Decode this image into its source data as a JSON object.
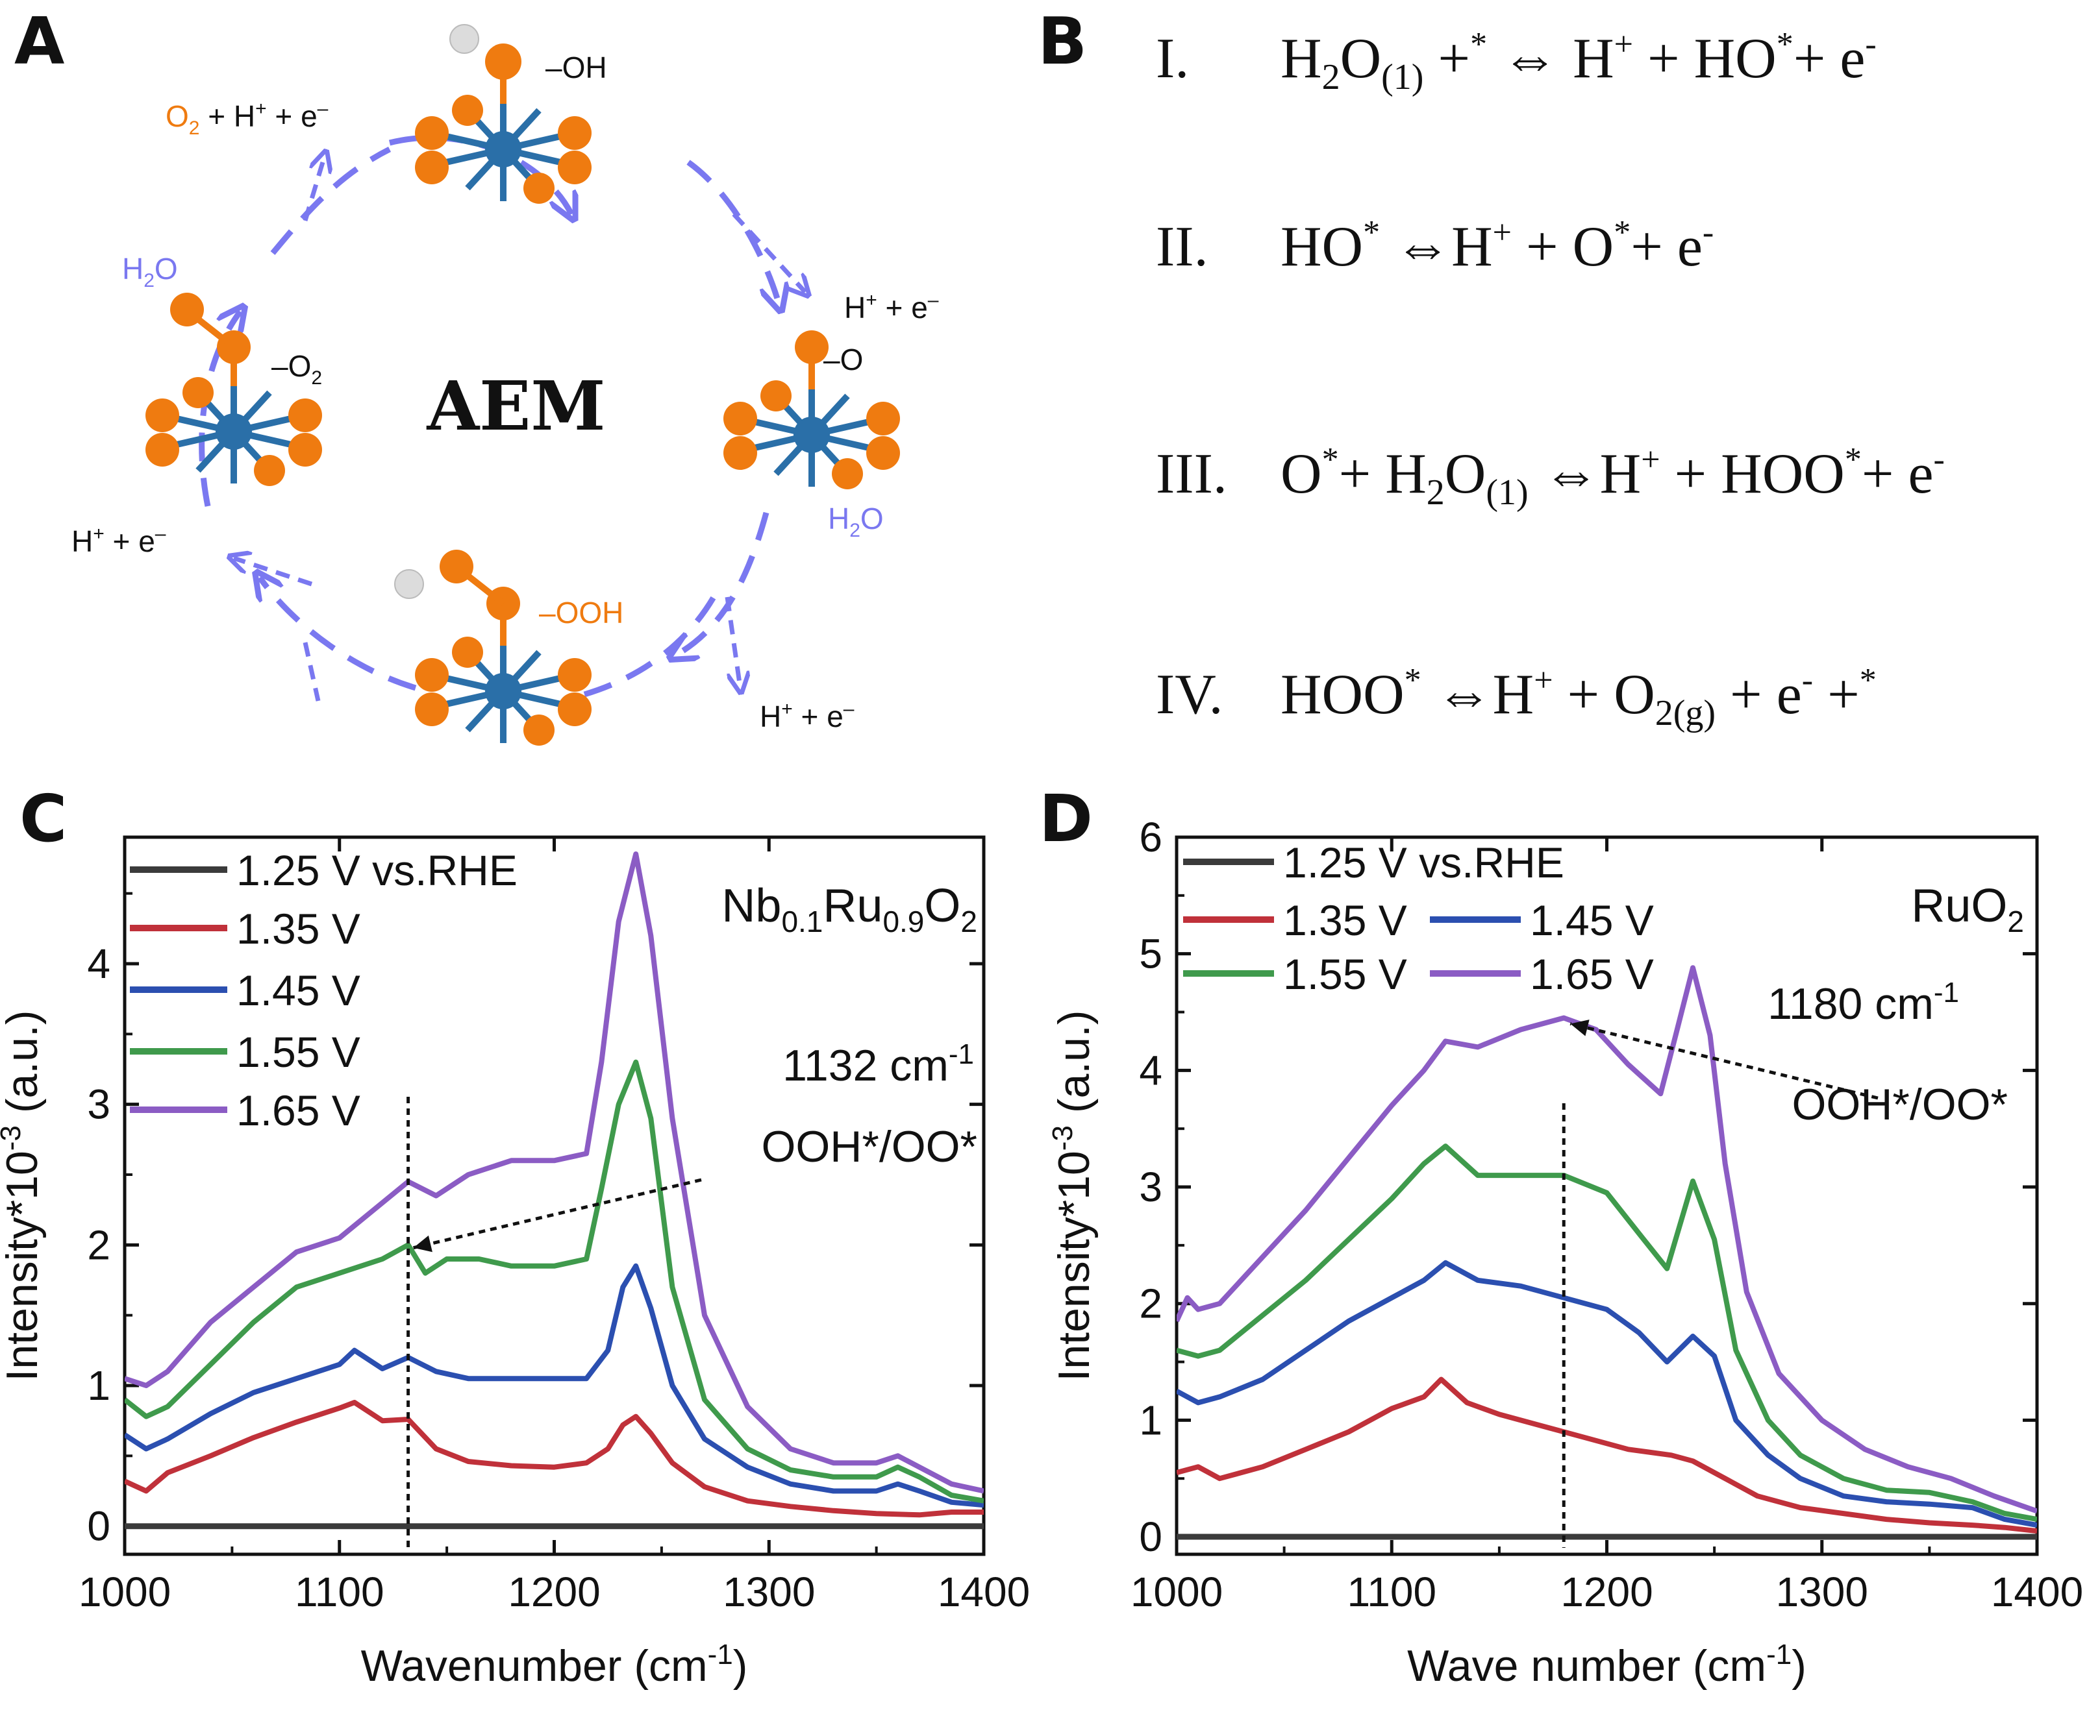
{
  "panel_labels": {
    "a": "A",
    "b": "B",
    "c": "C",
    "d": "D"
  },
  "panel_a": {
    "center_title": "AEM",
    "species": {
      "oh": "–OH",
      "o": "–O",
      "ooh": "–OOH",
      "o2": "–O",
      "o2_sub": "2"
    },
    "h2o_top_left": "H",
    "h2o_right": "H",
    "h2o_sub": "2",
    "h2o_tail": "O",
    "proton_electron": "H",
    "pe_sup": "+",
    "pe_tail": " + e",
    "pe_sup2": "–",
    "o2_release_o": "O",
    "o2_release_sub": "2",
    "o2_release_tail": " + H",
    "colors": {
      "oxygen": "#ef7b10",
      "metal": "#2a6fa8",
      "hydrogen": "#dcdcdc",
      "arrow": "#7a78f0",
      "orange_text": "#ef7b10",
      "purple_text": "#7a78f0"
    }
  },
  "panel_b": {
    "equations": [
      {
        "num": "I."
      },
      {
        "num": "II."
      },
      {
        "num": "III."
      },
      {
        "num": "IV."
      }
    ],
    "sym": {
      "h2o_h": "H",
      "h2o_2": "2",
      "h2o_o": "O",
      "liq": "(1)",
      "gas": "(g)",
      "star": "*",
      "eqv": "⇔",
      "h": "H",
      "plus_sup": "+",
      "minus_sup": "-",
      "ho": "HO",
      "o": "O",
      "hoo": "HOO",
      "o2_o": "O",
      "o2_2": "2",
      "e": "e",
      "plus": "+"
    }
  },
  "chart_data": [
    {
      "type": "line",
      "panel": "C",
      "title": "Nb0.1Ru0.9O2",
      "title_parts": {
        "a": "Nb",
        "a_sub": "0.1",
        "b": "Ru",
        "b_sub": "0.9",
        "c": "O",
        "c_sub": "2"
      },
      "xlabel": "Wavenumber (cm",
      "xlabel_sup": "-1",
      "xlabel_close": ")",
      "ylabel": "Intensity*10",
      "ylabel_sup": "-3",
      "ylabel_tail": " (a.u.)",
      "xlim": [
        1000,
        1400
      ],
      "ylim": [
        -0.2,
        4.9
      ],
      "xticks": [
        "1000",
        "1100",
        "1200",
        "1300",
        "1400"
      ],
      "yticks": [
        "0",
        "1",
        "2",
        "3",
        "4"
      ],
      "marker_x": 1132,
      "annotation": {
        "peak": "1132 cm",
        "peak_sup": "-1",
        "species": "OOH*/OO*"
      },
      "legend": [
        "1.25 V vs.RHE",
        "1.35 V",
        "1.45 V",
        "1.55 V",
        "1.65 V"
      ],
      "series": [
        {
          "name": "1.25 V vs.RHE",
          "color": "#3b3b3b",
          "x": [
            1000,
            1400
          ],
          "y": [
            0.0,
            0.0
          ]
        },
        {
          "name": "1.35 V",
          "color": "#c0313a",
          "x": [
            1000,
            1010,
            1020,
            1040,
            1060,
            1080,
            1100,
            1107,
            1120,
            1132,
            1145,
            1160,
            1180,
            1200,
            1215,
            1225,
            1232,
            1238,
            1245,
            1255,
            1270,
            1290,
            1310,
            1330,
            1350,
            1370,
            1385,
            1400
          ],
          "y": [
            0.32,
            0.25,
            0.38,
            0.5,
            0.63,
            0.74,
            0.84,
            0.88,
            0.75,
            0.76,
            0.55,
            0.46,
            0.43,
            0.42,
            0.45,
            0.55,
            0.72,
            0.78,
            0.66,
            0.45,
            0.28,
            0.18,
            0.14,
            0.11,
            0.09,
            0.08,
            0.1,
            0.1
          ]
        },
        {
          "name": "1.45 V",
          "color": "#2b4fb0",
          "x": [
            1000,
            1010,
            1020,
            1040,
            1060,
            1080,
            1100,
            1107,
            1120,
            1132,
            1145,
            1160,
            1180,
            1200,
            1215,
            1225,
            1232,
            1238,
            1245,
            1255,
            1270,
            1290,
            1310,
            1330,
            1350,
            1360,
            1370,
            1385,
            1400
          ],
          "y": [
            0.65,
            0.55,
            0.62,
            0.8,
            0.95,
            1.05,
            1.15,
            1.25,
            1.12,
            1.2,
            1.1,
            1.05,
            1.05,
            1.05,
            1.05,
            1.25,
            1.7,
            1.85,
            1.55,
            1.0,
            0.62,
            0.42,
            0.3,
            0.25,
            0.25,
            0.3,
            0.25,
            0.17,
            0.15
          ]
        },
        {
          "name": "1.55 V",
          "color": "#3f9a4c",
          "x": [
            1000,
            1010,
            1020,
            1040,
            1060,
            1080,
            1100,
            1120,
            1132,
            1140,
            1150,
            1165,
            1180,
            1200,
            1215,
            1222,
            1230,
            1238,
            1245,
            1255,
            1270,
            1290,
            1310,
            1330,
            1350,
            1360,
            1370,
            1385,
            1400
          ],
          "y": [
            0.9,
            0.78,
            0.85,
            1.15,
            1.45,
            1.7,
            1.8,
            1.9,
            2.0,
            1.8,
            1.9,
            1.9,
            1.85,
            1.85,
            1.9,
            2.4,
            3.0,
            3.3,
            2.9,
            1.7,
            0.9,
            0.55,
            0.4,
            0.35,
            0.35,
            0.42,
            0.35,
            0.22,
            0.18
          ]
        },
        {
          "name": "1.65 V",
          "color": "#8b5cc4",
          "x": [
            1000,
            1010,
            1020,
            1040,
            1060,
            1080,
            1100,
            1120,
            1132,
            1145,
            1160,
            1180,
            1200,
            1215,
            1222,
            1230,
            1238,
            1245,
            1255,
            1270,
            1290,
            1310,
            1330,
            1350,
            1360,
            1370,
            1385,
            1400
          ],
          "y": [
            1.05,
            1.0,
            1.1,
            1.45,
            1.7,
            1.95,
            2.05,
            2.3,
            2.45,
            2.35,
            2.5,
            2.6,
            2.6,
            2.65,
            3.3,
            4.3,
            4.78,
            4.2,
            2.9,
            1.5,
            0.85,
            0.55,
            0.45,
            0.45,
            0.5,
            0.42,
            0.3,
            0.25
          ]
        }
      ]
    },
    {
      "type": "line",
      "panel": "D",
      "title": "RuO2",
      "title_parts": {
        "a": "RuO",
        "a_sub": "2"
      },
      "xlabel": "Wave number (cm",
      "xlabel_sup": "-1",
      "xlabel_close": ")",
      "ylabel": "Intensity*10",
      "ylabel_sup": "-3",
      "ylabel_tail": " (a.u.)",
      "xlim": [
        1000,
        1400
      ],
      "ylim": [
        -0.15,
        6
      ],
      "xticks": [
        "1000",
        "1100",
        "1200",
        "1300",
        "1400"
      ],
      "yticks": [
        "0",
        "1",
        "2",
        "3",
        "4",
        "5",
        "6"
      ],
      "marker_x": 1180,
      "annotation": {
        "peak": "1180 cm",
        "peak_sup": "-1",
        "species": "OOH*/OO*"
      },
      "legend": [
        "1.25 V vs.RHE",
        "1.35 V",
        "1.45 V",
        "1.55 V",
        "1.65 V"
      ],
      "series": [
        {
          "name": "1.25 V vs.RHE",
          "color": "#3b3b3b",
          "x": [
            1000,
            1400
          ],
          "y": [
            0.0,
            0.0
          ]
        },
        {
          "name": "1.35 V",
          "color": "#c0313a",
          "x": [
            1000,
            1010,
            1020,
            1040,
            1060,
            1080,
            1100,
            1115,
            1123,
            1135,
            1150,
            1170,
            1190,
            1210,
            1230,
            1240,
            1255,
            1270,
            1290,
            1310,
            1330,
            1350,
            1370,
            1385,
            1400
          ],
          "y": [
            0.55,
            0.6,
            0.5,
            0.6,
            0.75,
            0.9,
            1.1,
            1.2,
            1.35,
            1.15,
            1.05,
            0.95,
            0.85,
            0.75,
            0.7,
            0.65,
            0.5,
            0.35,
            0.25,
            0.2,
            0.15,
            0.12,
            0.1,
            0.08,
            0.05
          ]
        },
        {
          "name": "1.45 V",
          "color": "#2b4fb0",
          "x": [
            1000,
            1010,
            1020,
            1040,
            1060,
            1080,
            1100,
            1115,
            1125,
            1140,
            1160,
            1180,
            1200,
            1215,
            1228,
            1240,
            1250,
            1260,
            1275,
            1290,
            1310,
            1330,
            1350,
            1370,
            1385,
            1400
          ],
          "y": [
            1.25,
            1.15,
            1.2,
            1.35,
            1.6,
            1.85,
            2.05,
            2.2,
            2.35,
            2.2,
            2.15,
            2.05,
            1.95,
            1.75,
            1.5,
            1.72,
            1.55,
            1.0,
            0.7,
            0.5,
            0.35,
            0.3,
            0.28,
            0.25,
            0.15,
            0.1
          ]
        },
        {
          "name": "1.55 V",
          "color": "#3f9a4c",
          "x": [
            1000,
            1010,
            1020,
            1040,
            1060,
            1080,
            1100,
            1115,
            1125,
            1140,
            1160,
            1180,
            1200,
            1215,
            1228,
            1240,
            1250,
            1260,
            1275,
            1290,
            1310,
            1330,
            1350,
            1370,
            1385,
            1400
          ],
          "y": [
            1.6,
            1.55,
            1.6,
            1.9,
            2.2,
            2.55,
            2.9,
            3.2,
            3.35,
            3.1,
            3.1,
            3.1,
            2.95,
            2.6,
            2.3,
            3.05,
            2.55,
            1.6,
            1.0,
            0.7,
            0.5,
            0.4,
            0.38,
            0.3,
            0.2,
            0.15
          ]
        },
        {
          "name": "1.65 V",
          "color": "#8b5cc4",
          "x": [
            1000,
            1005,
            1010,
            1020,
            1040,
            1060,
            1080,
            1100,
            1115,
            1125,
            1140,
            1160,
            1180,
            1195,
            1210,
            1225,
            1232,
            1240,
            1248,
            1255,
            1265,
            1280,
            1300,
            1320,
            1340,
            1360,
            1380,
            1400
          ],
          "y": [
            1.85,
            2.05,
            1.95,
            2.0,
            2.4,
            2.8,
            3.25,
            3.7,
            4.0,
            4.25,
            4.2,
            4.35,
            4.45,
            4.35,
            4.05,
            3.8,
            4.3,
            4.88,
            4.3,
            3.2,
            2.1,
            1.4,
            1.0,
            0.75,
            0.6,
            0.5,
            0.35,
            0.22
          ]
        }
      ]
    }
  ]
}
